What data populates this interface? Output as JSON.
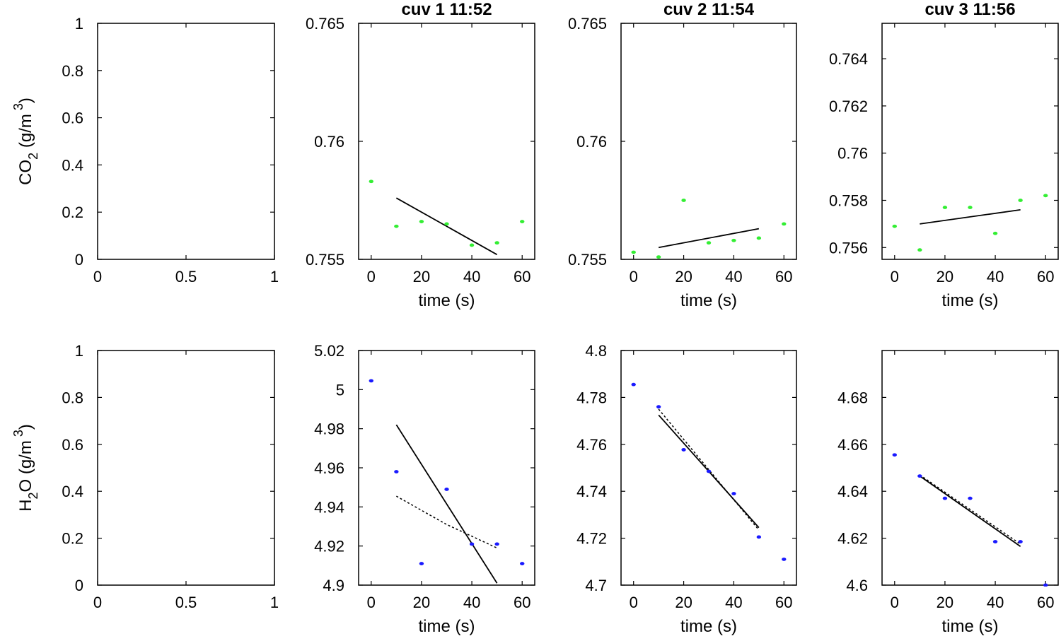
{
  "chart_data": [
    {
      "type": "line",
      "row": "co2",
      "panel": 0,
      "title": "",
      "ylabel": {
        "prefix": "CO",
        "sub": "2",
        "mid": " (g/m",
        "sup": " 3",
        "suffix": ")"
      },
      "xlim": [
        0,
        1
      ],
      "ylim": [
        0,
        1
      ],
      "xticks": [
        0,
        0.5,
        1
      ],
      "xtick_labels": [
        "0",
        "0.5",
        "1"
      ],
      "yticks": [
        0,
        0.2,
        0.4,
        0.6,
        0.8,
        1
      ],
      "ytick_labels": [
        "0",
        "0.2",
        "0.4",
        "0.6",
        "0.8",
        "1"
      ],
      "xlabel": "",
      "points": [],
      "fit": [],
      "fit2": []
    },
    {
      "type": "scatter",
      "row": "co2",
      "panel": 1,
      "title": "cuv 1 11:52",
      "xlabel": "time (s)",
      "xlim": [
        -5,
        65
      ],
      "ylim": [
        0.755,
        0.765
      ],
      "xticks": [
        0,
        20,
        40,
        60
      ],
      "xtick_labels": [
        "0",
        "20",
        "40",
        "60"
      ],
      "yticks": [
        0.755,
        0.76,
        0.765
      ],
      "ytick_labels": [
        "0.755",
        "0.76",
        "0.765"
      ],
      "point_color": "#33ee33",
      "points": [
        [
          0,
          0.7583
        ],
        [
          10,
          0.7564
        ],
        [
          20,
          0.7566
        ],
        [
          30,
          0.7565
        ],
        [
          40,
          0.7556
        ],
        [
          50,
          0.7557
        ],
        [
          60,
          0.7566
        ]
      ],
      "fit": [
        [
          10,
          0.7576
        ],
        [
          50,
          0.7552
        ]
      ],
      "fit2": []
    },
    {
      "type": "scatter",
      "row": "co2",
      "panel": 2,
      "title": "cuv 2 11:54",
      "xlabel": "time (s)",
      "xlim": [
        -5,
        65
      ],
      "ylim": [
        0.755,
        0.765
      ],
      "xticks": [
        0,
        20,
        40,
        60
      ],
      "xtick_labels": [
        "0",
        "20",
        "40",
        "60"
      ],
      "yticks": [
        0.755,
        0.76,
        0.765
      ],
      "ytick_labels": [
        "0.755",
        "0.76",
        "0.765"
      ],
      "point_color": "#33ee33",
      "points": [
        [
          0,
          0.7553
        ],
        [
          10,
          0.7551
        ],
        [
          20,
          0.7575
        ],
        [
          30,
          0.7557
        ],
        [
          40,
          0.7558
        ],
        [
          50,
          0.7559
        ],
        [
          60,
          0.7565
        ]
      ],
      "fit": [
        [
          10,
          0.7555
        ],
        [
          50,
          0.7563
        ]
      ],
      "fit2": []
    },
    {
      "type": "scatter",
      "row": "co2",
      "panel": 3,
      "title": "cuv 3 11:56",
      "xlabel": "time (s)",
      "xlim": [
        -5,
        65
      ],
      "ylim": [
        0.7555,
        0.7655
      ],
      "xticks": [
        0,
        20,
        40,
        60
      ],
      "xtick_labels": [
        "0",
        "20",
        "40",
        "60"
      ],
      "yticks": [
        0.756,
        0.758,
        0.76,
        0.762,
        0.764
      ],
      "ytick_labels": [
        "0.756",
        "0.758",
        "0.76",
        "0.762",
        "0.764"
      ],
      "point_color": "#33ee33",
      "points": [
        [
          0,
          0.7569
        ],
        [
          10,
          0.7559
        ],
        [
          20,
          0.7577
        ],
        [
          30,
          0.7577
        ],
        [
          40,
          0.7566
        ],
        [
          50,
          0.758
        ],
        [
          60,
          0.7582
        ]
      ],
      "fit": [
        [
          10,
          0.757
        ],
        [
          50,
          0.7576
        ]
      ],
      "fit2": []
    },
    {
      "type": "line",
      "row": "h2o",
      "panel": 0,
      "title": "",
      "ylabel": {
        "prefix": "H",
        "sub": "2",
        "mid": "O (g/m",
        "sup": " 3",
        "suffix": ")"
      },
      "xlim": [
        0,
        1
      ],
      "ylim": [
        0,
        1
      ],
      "xticks": [
        0,
        0.5,
        1
      ],
      "xtick_labels": [
        "0",
        "0.5",
        "1"
      ],
      "yticks": [
        0,
        0.2,
        0.4,
        0.6,
        0.8,
        1
      ],
      "ytick_labels": [
        "0",
        "0.2",
        "0.4",
        "0.6",
        "0.8",
        "1"
      ],
      "xlabel": "",
      "points": [],
      "fit": [],
      "fit2": []
    },
    {
      "type": "scatter",
      "row": "h2o",
      "panel": 1,
      "title": "",
      "xlabel": "time (s)",
      "xlim": [
        -5,
        65
      ],
      "ylim": [
        4.9,
        5.02
      ],
      "xticks": [
        0,
        20,
        40,
        60
      ],
      "xtick_labels": [
        "0",
        "20",
        "40",
        "60"
      ],
      "yticks": [
        4.9,
        4.92,
        4.94,
        4.96,
        4.98,
        5,
        5.02
      ],
      "ytick_labels": [
        "4.9",
        "4.92",
        "4.94",
        "4.96",
        "4.98",
        "5",
        "5.02"
      ],
      "point_color": "#1a1aff",
      "points": [
        [
          0,
          5.0045
        ],
        [
          10,
          4.958
        ],
        [
          20,
          4.911
        ],
        [
          30,
          4.949
        ],
        [
          40,
          4.921
        ],
        [
          50,
          4.921
        ],
        [
          60,
          4.911
        ]
      ],
      "fit": [
        [
          10,
          4.982
        ],
        [
          50,
          4.901
        ]
      ],
      "fit2": [
        [
          10,
          4.9455
        ],
        [
          30,
          4.931
        ],
        [
          50,
          4.919
        ]
      ]
    },
    {
      "type": "scatter",
      "row": "h2o",
      "panel": 2,
      "title": "",
      "xlabel": "time (s)",
      "xlim": [
        -5,
        65
      ],
      "ylim": [
        4.7,
        4.8
      ],
      "xticks": [
        0,
        20,
        40,
        60
      ],
      "xtick_labels": [
        "0",
        "20",
        "40",
        "60"
      ],
      "yticks": [
        4.7,
        4.72,
        4.74,
        4.76,
        4.78,
        4.8
      ],
      "ytick_labels": [
        "4.7",
        "4.72",
        "4.74",
        "4.76",
        "4.78",
        "4.8"
      ],
      "point_color": "#1a1aff",
      "points": [
        [
          0,
          4.7855
        ],
        [
          10,
          4.776
        ],
        [
          20,
          4.7577
        ],
        [
          30,
          4.7485
        ],
        [
          40,
          4.739
        ],
        [
          50,
          4.7205
        ],
        [
          60,
          4.711
        ]
      ],
      "fit": [
        [
          10,
          4.7725
        ],
        [
          50,
          4.7245
        ]
      ],
      "fit2": [
        [
          10,
          4.775
        ],
        [
          50,
          4.7235
        ]
      ]
    },
    {
      "type": "scatter",
      "row": "h2o",
      "panel": 3,
      "title": "",
      "xlabel": "time (s)",
      "xlim": [
        -5,
        65
      ],
      "ylim": [
        4.6,
        4.7
      ],
      "xticks": [
        0,
        20,
        40,
        60
      ],
      "xtick_labels": [
        "0",
        "20",
        "40",
        "60"
      ],
      "yticks": [
        4.6,
        4.62,
        4.64,
        4.66,
        4.68
      ],
      "ytick_labels": [
        "4.6",
        "4.62",
        "4.64",
        "4.66",
        "4.68"
      ],
      "point_color": "#1a1aff",
      "points": [
        [
          0,
          4.6555
        ],
        [
          10,
          4.6465
        ],
        [
          20,
          4.637
        ],
        [
          30,
          4.637
        ],
        [
          40,
          4.6185
        ],
        [
          50,
          4.6185
        ],
        [
          60,
          4.6
        ]
      ],
      "fit": [
        [
          10,
          4.6465
        ],
        [
          50,
          4.6165
        ]
      ],
      "fit2": [
        [
          10,
          4.647
        ],
        [
          50,
          4.6175
        ]
      ]
    }
  ]
}
